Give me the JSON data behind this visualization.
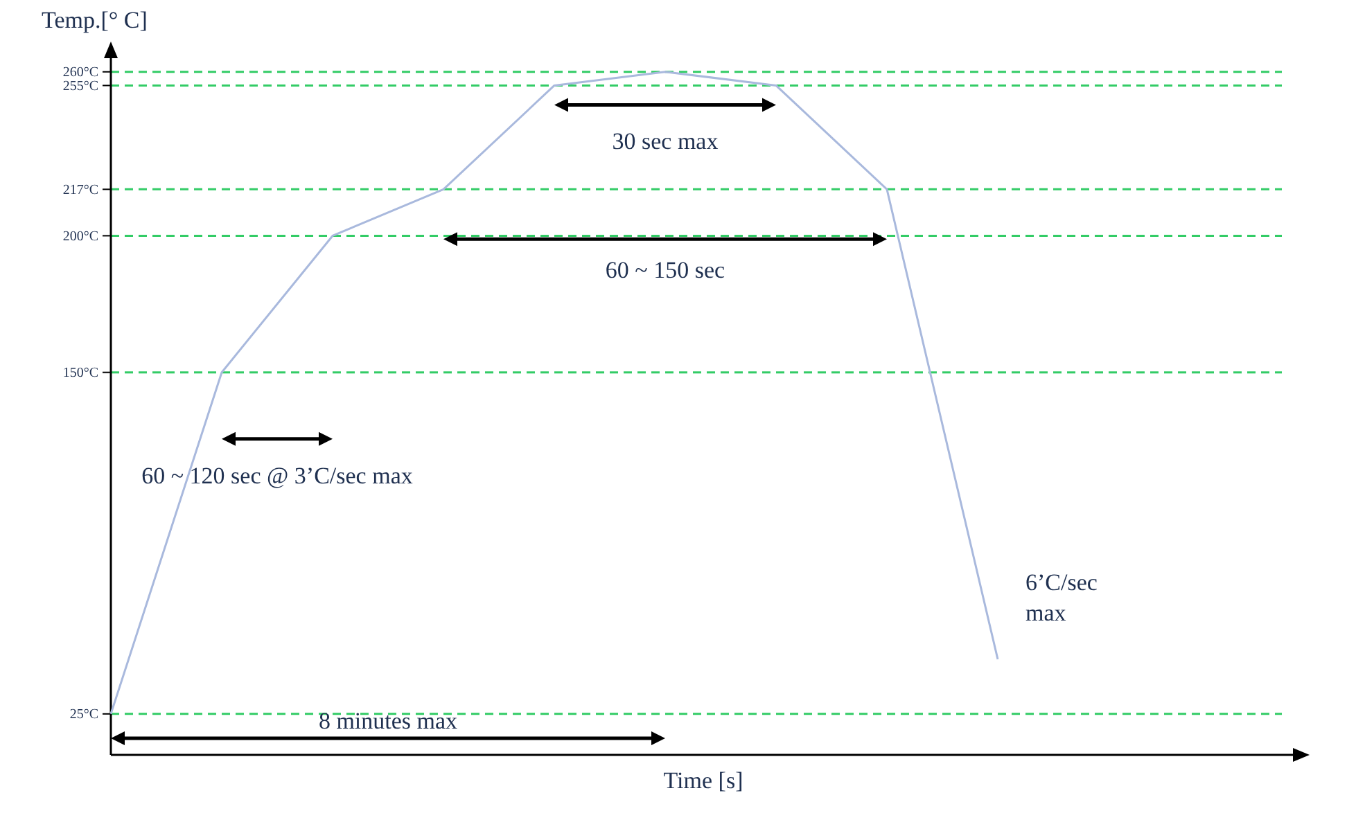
{
  "chart_data": {
    "type": "line",
    "xlabel": "Time [s]",
    "ylabel": "Temp.[° C]",
    "categories": [
      null,
      null,
      null,
      null,
      null,
      null,
      null,
      null,
      null
    ],
    "series": [
      {
        "color": "#a9b9dd",
        "values": [
          25,
          150,
          200,
          217,
          255,
          260,
          255,
          217,
          45
        ]
      }
    ],
    "ylim": [
      10,
      265
    ],
    "yticks": [
      {
        "value": 25,
        "label": "25°C"
      },
      {
        "value": 150,
        "label": "150°C"
      },
      {
        "value": 200,
        "label": "200°C"
      },
      {
        "value": 217,
        "label": "217°C"
      },
      {
        "value": 255,
        "label": "255°C"
      },
      {
        "value": 260,
        "label": "260°C"
      }
    ],
    "ref_lines": [
      {
        "axis": "y",
        "value": 25,
        "color": "#33cc66",
        "line_style": "dashed"
      },
      {
        "axis": "y",
        "value": 150,
        "color": "#33cc66",
        "line_style": "dashed"
      },
      {
        "axis": "y",
        "value": 200,
        "color": "#33cc66",
        "line_style": "dashed"
      },
      {
        "axis": "y",
        "value": 217,
        "color": "#33cc66",
        "line_style": "dashed"
      },
      {
        "axis": "y",
        "value": 255,
        "color": "#33cc66",
        "line_style": "dashed"
      },
      {
        "axis": "y",
        "value": 260,
        "color": "#33cc66",
        "line_style": "dashed"
      }
    ],
    "annotations": [
      "30 sec max",
      "60 ~ 150 sec",
      "60 ~ 120 sec @ 3’C/sec max",
      "8 minutes max",
      "6’C/sec max"
    ],
    "grid": false,
    "marker": "none",
    "line_style": "solid"
  }
}
